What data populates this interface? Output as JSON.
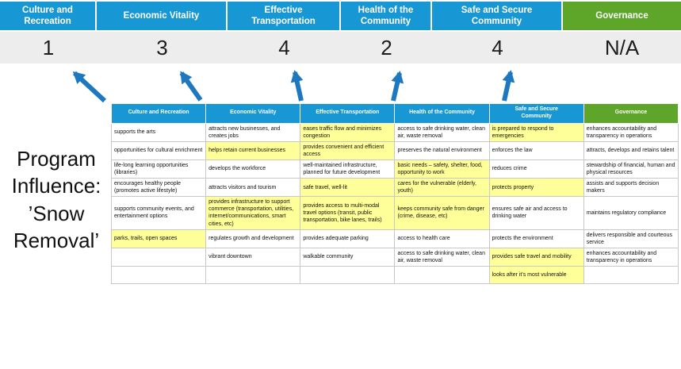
{
  "title": "Program Influence: ’Snow Removal’",
  "colors": {
    "header_blue": "#1897d5",
    "header_green": "#5ea629",
    "highlight_yellow": "#ffff99",
    "arrow_blue": "#1e78c0",
    "score_band_gray": "#ededed"
  },
  "summary": {
    "columns": [
      {
        "label": "Culture and Recreation",
        "score": "1",
        "color": "blue"
      },
      {
        "label": "Economic Vitality",
        "score": "3",
        "color": "blue"
      },
      {
        "label": "Effective Transportation",
        "score": "4",
        "color": "blue"
      },
      {
        "label": "Health of the Community",
        "score": "2",
        "color": "blue"
      },
      {
        "label": "Safe and Secure Community",
        "score": "4",
        "color": "blue"
      },
      {
        "label": "Governance",
        "score": "N/A",
        "color": "green"
      }
    ]
  },
  "matrix": {
    "headers": [
      "Culture and Recreation",
      "Economic Vitality",
      "Effective Transportation",
      "Health of the Community",
      "Safe and Secure\nCommunity",
      "Governance"
    ],
    "rows": [
      [
        {
          "text": "supports the arts"
        },
        {
          "text": "attracts new businesses, and creates jobs"
        },
        {
          "text": "eases traffic flow and minimizes congestion",
          "highlight": true
        },
        {
          "text": "access to safe drinking water, clean air, waste removal"
        },
        {
          "text": "is prepared to respond to emergencies",
          "highlight": true
        },
        {
          "text": "enhances accountability and transparency in operations"
        }
      ],
      [
        {
          "text": "opportunities for cultural enrichment"
        },
        {
          "text": "helps retain current businesses",
          "highlight": true
        },
        {
          "text": "provides convenient and efficient access",
          "highlight": true
        },
        {
          "text": "preserves the natural environment"
        },
        {
          "text": "enforces the law"
        },
        {
          "text": "attracts, develops and retains talent"
        }
      ],
      [
        {
          "text": "life-long learning opportunities (libraries)"
        },
        {
          "text": "develops the workforce"
        },
        {
          "text": "well-maintained infrastructure, planned for future development"
        },
        {
          "text": "basic needs – safety, shelter, food, opportunity to work",
          "highlight": true
        },
        {
          "text": "reduces crime"
        },
        {
          "text": "stewardship of financial, human and physical resources"
        }
      ],
      [
        {
          "text": "encourages healthy people (promotes active lifestyle)"
        },
        {
          "text": "attracts visitors and tourism"
        },
        {
          "text": "safe travel, well-lit",
          "highlight": true
        },
        {
          "text": "cares for the vulnerable (elderly, youth)",
          "highlight": true
        },
        {
          "text": "protects property",
          "highlight": true
        },
        {
          "text": "assists and supports decision makers"
        }
      ],
      [
        {
          "text": "supports community events, and entertainment options"
        },
        {
          "text": "provides infrastructure to support commerce (transportation, utilities, internet/communications, smart cities, etc)",
          "highlight": true
        },
        {
          "text": "provides access to multi-modal travel options (transit, public transportation, bike lanes, trails)",
          "highlight": true
        },
        {
          "text": "keeps community safe from danger (crime, disease, etc)",
          "highlight": true
        },
        {
          "text": "ensures safe air and access to drinking water"
        },
        {
          "text": "maintains regulatory compliance"
        }
      ],
      [
        {
          "text": "parks, trails, open spaces",
          "highlight": true
        },
        {
          "text": "regulates growth and development"
        },
        {
          "text": "provides adequate parking"
        },
        {
          "text": "access to health care"
        },
        {
          "text": "protects the environment"
        },
        {
          "text": "delivers responsible and courteous service"
        }
      ],
      [
        {
          "text": ""
        },
        {
          "text": "vibrant downtown"
        },
        {
          "text": "walkable community"
        },
        {
          "text": "access to safe drinking water, clean air, waste removal"
        },
        {
          "text": "provides safe travel and mobility",
          "highlight": true
        },
        {
          "text": "enhances accountability and transparency in operations"
        }
      ],
      [
        {
          "text": ""
        },
        {
          "text": ""
        },
        {
          "text": ""
        },
        {
          "text": ""
        },
        {
          "text": "looks after it's most vulnerable",
          "highlight": true
        },
        {
          "text": ""
        }
      ]
    ]
  }
}
